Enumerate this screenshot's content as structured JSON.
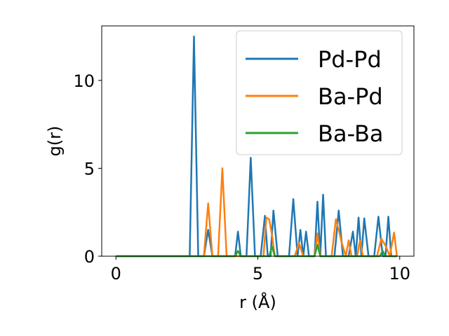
{
  "chart_data": {
    "type": "line",
    "title": "",
    "xlabel": "r (Å)",
    "ylabel": "g(r)",
    "xlim": [
      -0.5,
      10.5
    ],
    "ylim": [
      0,
      13.1
    ],
    "xticks": [
      0,
      5,
      10
    ],
    "xtick_labels": [
      "0",
      "5",
      "10"
    ],
    "yticks": [
      0,
      5,
      10
    ],
    "ytick_labels": [
      "0",
      "5",
      "10"
    ],
    "grid": false,
    "legend_position": "top-right",
    "series": [
      {
        "name": "Pd-Pd",
        "color": "#1f77b4",
        "x": [
          0,
          2.6,
          2.75,
          2.9,
          3.1,
          3.25,
          3.4,
          4.2,
          4.3,
          4.4,
          4.6,
          4.75,
          4.9,
          5.1,
          5.25,
          5.35,
          5.45,
          5.55,
          5.7,
          6.1,
          6.25,
          6.4,
          6.5,
          6.6,
          6.7,
          6.8,
          7.0,
          7.1,
          7.2,
          7.3,
          7.4,
          7.7,
          7.85,
          8.0,
          8.2,
          8.35,
          8.45,
          8.55,
          8.65,
          8.75,
          8.9,
          9.1,
          9.25,
          9.4,
          9.5,
          9.6,
          9.7,
          9.9
        ],
        "y": [
          0,
          0,
          12.5,
          0,
          0,
          1.5,
          0,
          0,
          1.4,
          0,
          0,
          5.6,
          0,
          0,
          2.3,
          0,
          0,
          2.6,
          0,
          0,
          3.25,
          0,
          1.5,
          0,
          1.4,
          0,
          0,
          3.1,
          0,
          3.5,
          0,
          0,
          2.6,
          0,
          0,
          1.4,
          0,
          2.2,
          0,
          2.15,
          0,
          0,
          2.25,
          0,
          0,
          2.25,
          0,
          0
        ]
      },
      {
        "name": "Ba-Pd",
        "color": "#ff7f0e",
        "x": [
          0,
          3.1,
          3.25,
          3.4,
          3.6,
          3.75,
          3.9,
          5.2,
          5.3,
          5.4,
          5.5,
          5.6,
          6.3,
          6.45,
          6.6,
          7.0,
          7.1,
          7.2,
          7.6,
          7.75,
          7.85,
          7.95,
          8.1,
          8.2,
          8.3,
          8.5,
          8.6,
          8.7,
          9.2,
          9.35,
          9.5,
          9.65,
          9.8,
          9.9
        ],
        "y": [
          0,
          0,
          3.0,
          0,
          0,
          5.0,
          0,
          0,
          2.2,
          2.1,
          1.2,
          0,
          0,
          0.75,
          0,
          0,
          1.3,
          0,
          0,
          2.1,
          1.5,
          0.8,
          0,
          0.9,
          0,
          0,
          0.9,
          0,
          0,
          1.0,
          0.6,
          0,
          1.35,
          0
        ]
      },
      {
        "name": "Ba-Ba",
        "color": "#2ca02c",
        "x": [
          0,
          4.2,
          4.3,
          4.4,
          5.4,
          5.5,
          5.6,
          7.0,
          7.1,
          7.2,
          9.3,
          9.4,
          9.5,
          9.9
        ],
        "y": [
          0,
          0,
          0.3,
          0,
          0,
          0.55,
          0,
          0,
          0.65,
          0,
          0,
          0.3,
          0,
          0
        ]
      }
    ]
  }
}
